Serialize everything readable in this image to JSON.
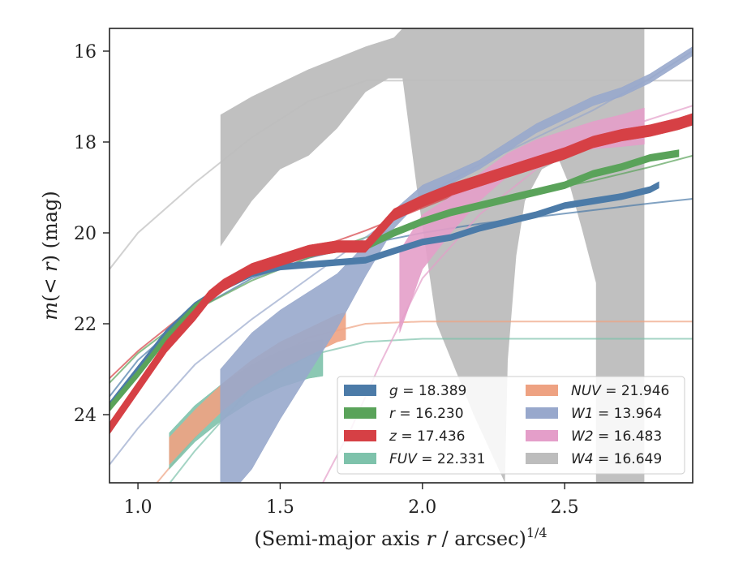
{
  "chart_data": {
    "type": "line",
    "xlabel": "(Semi-major axis r / arcsec)",
    "xlabel_parts": {
      "prefix": "(Semi-major axis ",
      "var": "r",
      "suffix": " / arcsec)",
      "sup": "1/4"
    },
    "ylabel": "m(< r) (mag)",
    "ylabel_parts": {
      "m": "m",
      "open": "(",
      "lt": "< ",
      "r": "r",
      "close": ")",
      "unit": " (mag)"
    },
    "xlim": [
      0.9,
      2.95
    ],
    "ylim": [
      25.5,
      15.5
    ],
    "y_inverted": true,
    "xticks": [
      1.0,
      1.5,
      2.0,
      2.5
    ],
    "xtick_labels": [
      "1.0",
      "1.5",
      "2.0",
      "2.5"
    ],
    "yticks": [
      16,
      18,
      20,
      22,
      24
    ],
    "ytick_labels": [
      "16",
      "18",
      "20",
      "22",
      "24"
    ],
    "grid": false,
    "legend_placement": "lower-right",
    "series": [
      {
        "name": "g",
        "label": "g = 18.389",
        "legend_var": "g",
        "legend_value": "= 18.389",
        "color": "#4c7ba8",
        "data": [
          [
            0.9,
            23.8
          ],
          [
            1.0,
            23.0
          ],
          [
            1.1,
            22.2
          ],
          [
            1.2,
            21.6
          ],
          [
            1.3,
            21.2
          ],
          [
            1.4,
            20.9
          ],
          [
            1.5,
            20.75
          ],
          [
            1.6,
            20.7
          ],
          [
            1.7,
            20.65
          ],
          [
            1.8,
            20.6
          ],
          [
            1.9,
            20.4
          ],
          [
            2.0,
            20.2
          ],
          [
            2.1,
            20.1
          ],
          [
            2.2,
            19.9
          ],
          [
            2.3,
            19.75
          ],
          [
            2.4,
            19.6
          ],
          [
            2.5,
            19.4
          ],
          [
            2.6,
            19.3
          ],
          [
            2.7,
            19.2
          ],
          [
            2.8,
            19.05
          ],
          [
            2.83,
            18.95
          ]
        ],
        "half_width": 0.06,
        "model": [
          [
            0.9,
            23.6
          ],
          [
            1.0,
            22.8
          ],
          [
            1.2,
            21.7
          ],
          [
            1.4,
            21.0
          ],
          [
            1.6,
            20.55
          ],
          [
            1.8,
            20.25
          ],
          [
            2.0,
            20.0
          ],
          [
            2.2,
            19.8
          ],
          [
            2.4,
            19.65
          ],
          [
            2.6,
            19.5
          ],
          [
            2.8,
            19.35
          ],
          [
            2.95,
            19.25
          ]
        ]
      },
      {
        "name": "r",
        "label": "r = 16.230",
        "legend_var": "r",
        "legend_value": "= 16.230",
        "color": "#5aa35a",
        "data": [
          [
            0.9,
            23.85
          ],
          [
            1.0,
            23.1
          ],
          [
            1.1,
            22.3
          ],
          [
            1.2,
            21.65
          ],
          [
            1.3,
            21.2
          ],
          [
            1.4,
            20.85
          ],
          [
            1.5,
            20.6
          ],
          [
            1.6,
            20.45
          ],
          [
            1.7,
            20.35
          ],
          [
            1.8,
            20.3
          ],
          [
            1.9,
            20.0
          ],
          [
            2.0,
            19.75
          ],
          [
            2.1,
            19.55
          ],
          [
            2.2,
            19.4
          ],
          [
            2.3,
            19.25
          ],
          [
            2.4,
            19.1
          ],
          [
            2.5,
            18.95
          ],
          [
            2.6,
            18.7
          ],
          [
            2.7,
            18.55
          ],
          [
            2.8,
            18.35
          ],
          [
            2.9,
            18.25
          ]
        ],
        "half_width": 0.07,
        "model": [
          [
            0.9,
            23.3
          ],
          [
            1.0,
            22.65
          ],
          [
            1.2,
            21.7
          ],
          [
            1.4,
            21.05
          ],
          [
            1.6,
            20.55
          ],
          [
            1.8,
            20.1
          ],
          [
            2.0,
            19.75
          ],
          [
            2.2,
            19.4
          ],
          [
            2.4,
            19.1
          ],
          [
            2.6,
            18.85
          ],
          [
            2.8,
            18.55
          ],
          [
            2.95,
            18.3
          ]
        ]
      },
      {
        "name": "z",
        "label": "z = 17.436",
        "legend_var": "z",
        "legend_value": "= 17.436",
        "color": "#d64045",
        "data": [
          [
            0.9,
            24.3
          ],
          [
            1.0,
            23.4
          ],
          [
            1.1,
            22.5
          ],
          [
            1.2,
            21.8
          ],
          [
            1.25,
            21.4
          ],
          [
            1.3,
            21.15
          ],
          [
            1.4,
            20.8
          ],
          [
            1.5,
            20.6
          ],
          [
            1.6,
            20.4
          ],
          [
            1.7,
            20.3
          ],
          [
            1.8,
            20.3
          ],
          [
            1.9,
            19.6
          ],
          [
            2.0,
            19.3
          ],
          [
            2.1,
            19.05
          ],
          [
            2.2,
            18.85
          ],
          [
            2.3,
            18.65
          ],
          [
            2.4,
            18.45
          ],
          [
            2.5,
            18.25
          ],
          [
            2.6,
            18.0
          ],
          [
            2.7,
            17.85
          ],
          [
            2.8,
            17.75
          ],
          [
            2.9,
            17.6
          ],
          [
            2.95,
            17.5
          ]
        ],
        "half_width": 0.13,
        "model": [
          [
            0.9,
            23.2
          ],
          [
            1.0,
            22.6
          ],
          [
            1.2,
            21.6
          ],
          [
            1.4,
            20.9
          ],
          [
            1.6,
            20.4
          ],
          [
            1.8,
            19.95
          ],
          [
            2.0,
            19.45
          ],
          [
            2.2,
            18.95
          ],
          [
            2.4,
            18.5
          ],
          [
            2.6,
            18.1
          ],
          [
            2.8,
            17.7
          ],
          [
            2.95,
            17.45
          ]
        ]
      },
      {
        "name": "FUV",
        "label": "FUV = 22.331",
        "legend_var": "FUV",
        "legend_value": "= 22.331",
        "color": "#7ec2ab",
        "data": [
          [
            1.11,
            24.8
          ],
          [
            1.2,
            24.2
          ],
          [
            1.3,
            23.7
          ],
          [
            1.4,
            23.3
          ],
          [
            1.5,
            23.0
          ],
          [
            1.6,
            22.8
          ],
          [
            1.65,
            22.75
          ]
        ],
        "half_width": 0.4,
        "model": [
          [
            1.0,
            26.4
          ],
          [
            1.2,
            24.8
          ],
          [
            1.4,
            23.4
          ],
          [
            1.6,
            22.7
          ],
          [
            1.8,
            22.4
          ],
          [
            2.0,
            22.33
          ],
          [
            2.4,
            22.33
          ],
          [
            2.95,
            22.33
          ]
        ]
      },
      {
        "name": "NUV",
        "label": "NUV = 21.946",
        "legend_var": "NUV",
        "legend_value": "= 21.946",
        "color": "#eea282",
        "data": [
          [
            1.11,
            24.8
          ],
          [
            1.2,
            24.2
          ],
          [
            1.3,
            23.6
          ],
          [
            1.4,
            23.1
          ],
          [
            1.5,
            22.7
          ],
          [
            1.6,
            22.4
          ],
          [
            1.7,
            22.1
          ],
          [
            1.73,
            22.05
          ]
        ],
        "half_width": 0.3,
        "model": [
          [
            1.0,
            26.0
          ],
          [
            1.2,
            24.5
          ],
          [
            1.4,
            23.1
          ],
          [
            1.6,
            22.3
          ],
          [
            1.8,
            22.0
          ],
          [
            2.0,
            21.95
          ],
          [
            2.4,
            21.95
          ],
          [
            2.95,
            21.95
          ]
        ]
      },
      {
        "name": "W1",
        "label": "W1 = 13.964",
        "legend_var": "W1",
        "legend_value": "= 13.964",
        "color": "#98a8cc",
        "data": [
          [
            1.29,
            24.5
          ],
          [
            1.4,
            23.7
          ],
          [
            1.5,
            22.9
          ],
          [
            1.6,
            22.2
          ],
          [
            1.7,
            21.5
          ],
          [
            1.8,
            20.6
          ],
          [
            1.9,
            19.7
          ],
          [
            2.0,
            19.1
          ],
          [
            2.1,
            18.8
          ],
          [
            2.2,
            18.5
          ],
          [
            2.3,
            18.1
          ],
          [
            2.4,
            17.7
          ],
          [
            2.5,
            17.4
          ],
          [
            2.6,
            17.1
          ],
          [
            2.7,
            16.9
          ],
          [
            2.8,
            16.6
          ],
          [
            2.9,
            16.2
          ],
          [
            2.95,
            16.0
          ]
        ],
        "half_width": [
          1.5,
          1.5,
          1.2,
          0.9,
          0.6,
          0.35,
          0.2,
          0.15,
          0.12,
          0.1,
          0.1,
          0.1,
          0.1,
          0.1,
          0.1,
          0.1,
          0.1,
          0.1
        ],
        "model": [
          [
            0.9,
            25.1
          ],
          [
            1.0,
            24.3
          ],
          [
            1.2,
            22.9
          ],
          [
            1.4,
            21.9
          ],
          [
            1.6,
            21.0
          ],
          [
            1.8,
            20.1
          ],
          [
            2.0,
            19.2
          ],
          [
            2.2,
            18.5
          ],
          [
            2.4,
            17.9
          ],
          [
            2.6,
            17.3
          ],
          [
            2.8,
            16.6
          ],
          [
            2.95,
            16.0
          ]
        ]
      },
      {
        "name": "W2",
        "label": "W2 = 16.483",
        "legend_var": "W2",
        "legend_value": "= 16.483",
        "color": "#e49ec9",
        "data": [
          [
            1.92,
            21.3
          ],
          [
            2.0,
            20.2
          ],
          [
            2.1,
            19.6
          ],
          [
            2.2,
            19.0
          ],
          [
            2.3,
            18.5
          ],
          [
            2.4,
            18.2
          ],
          [
            2.5,
            18.0
          ],
          [
            2.6,
            17.85
          ],
          [
            2.7,
            17.75
          ],
          [
            2.78,
            17.65
          ]
        ],
        "half_width": [
          0.9,
          0.6,
          0.4,
          0.3,
          0.25,
          0.25,
          0.25,
          0.3,
          0.35,
          0.4
        ],
        "model": [
          [
            1.65,
            25.5
          ],
          [
            1.75,
            24.3
          ],
          [
            1.85,
            22.9
          ],
          [
            2.0,
            21.0
          ],
          [
            2.2,
            19.6
          ],
          [
            2.4,
            18.6
          ],
          [
            2.6,
            17.9
          ],
          [
            2.8,
            17.5
          ],
          [
            2.95,
            17.2
          ]
        ]
      },
      {
        "name": "W4",
        "label": "W4 = 16.649",
        "legend_var": "W4",
        "legend_value": "= 16.649",
        "color": "#bdbdbd",
        "band_upper": [
          [
            1.29,
            17.4
          ],
          [
            1.4,
            17.0
          ],
          [
            1.6,
            16.4
          ],
          [
            1.8,
            15.9
          ],
          [
            1.9,
            15.7
          ],
          [
            1.93,
            15.5
          ],
          [
            2.78,
            15.5
          ]
        ],
        "band_lower": [
          [
            2.78,
            25.5
          ],
          [
            2.61,
            25.5
          ],
          [
            2.61,
            21.1
          ],
          [
            2.56,
            19.9
          ],
          [
            2.52,
            19.0
          ],
          [
            2.48,
            18.4
          ],
          [
            2.42,
            18.6
          ],
          [
            2.36,
            19.3
          ],
          [
            2.33,
            20.5
          ],
          [
            2.3,
            22.8
          ],
          [
            2.29,
            25.5
          ],
          [
            2.18,
            24.0
          ],
          [
            2.05,
            22.0
          ],
          [
            1.98,
            19.0
          ],
          [
            1.93,
            16.6
          ],
          [
            1.88,
            16.6
          ],
          [
            1.8,
            16.9
          ],
          [
            1.7,
            17.7
          ],
          [
            1.6,
            18.3
          ],
          [
            1.5,
            18.6
          ],
          [
            1.4,
            19.3
          ],
          [
            1.29,
            20.3
          ]
        ],
        "model": [
          [
            0.9,
            20.8
          ],
          [
            1.0,
            20.0
          ],
          [
            1.2,
            18.9
          ],
          [
            1.4,
            17.9
          ],
          [
            1.6,
            17.1
          ],
          [
            1.8,
            16.65
          ],
          [
            2.0,
            16.65
          ],
          [
            2.95,
            16.65
          ]
        ]
      }
    ],
    "legend_columns": [
      [
        "g",
        "r",
        "z",
        "FUV"
      ],
      [
        "NUV",
        "W1",
        "W2",
        "W4"
      ]
    ]
  }
}
